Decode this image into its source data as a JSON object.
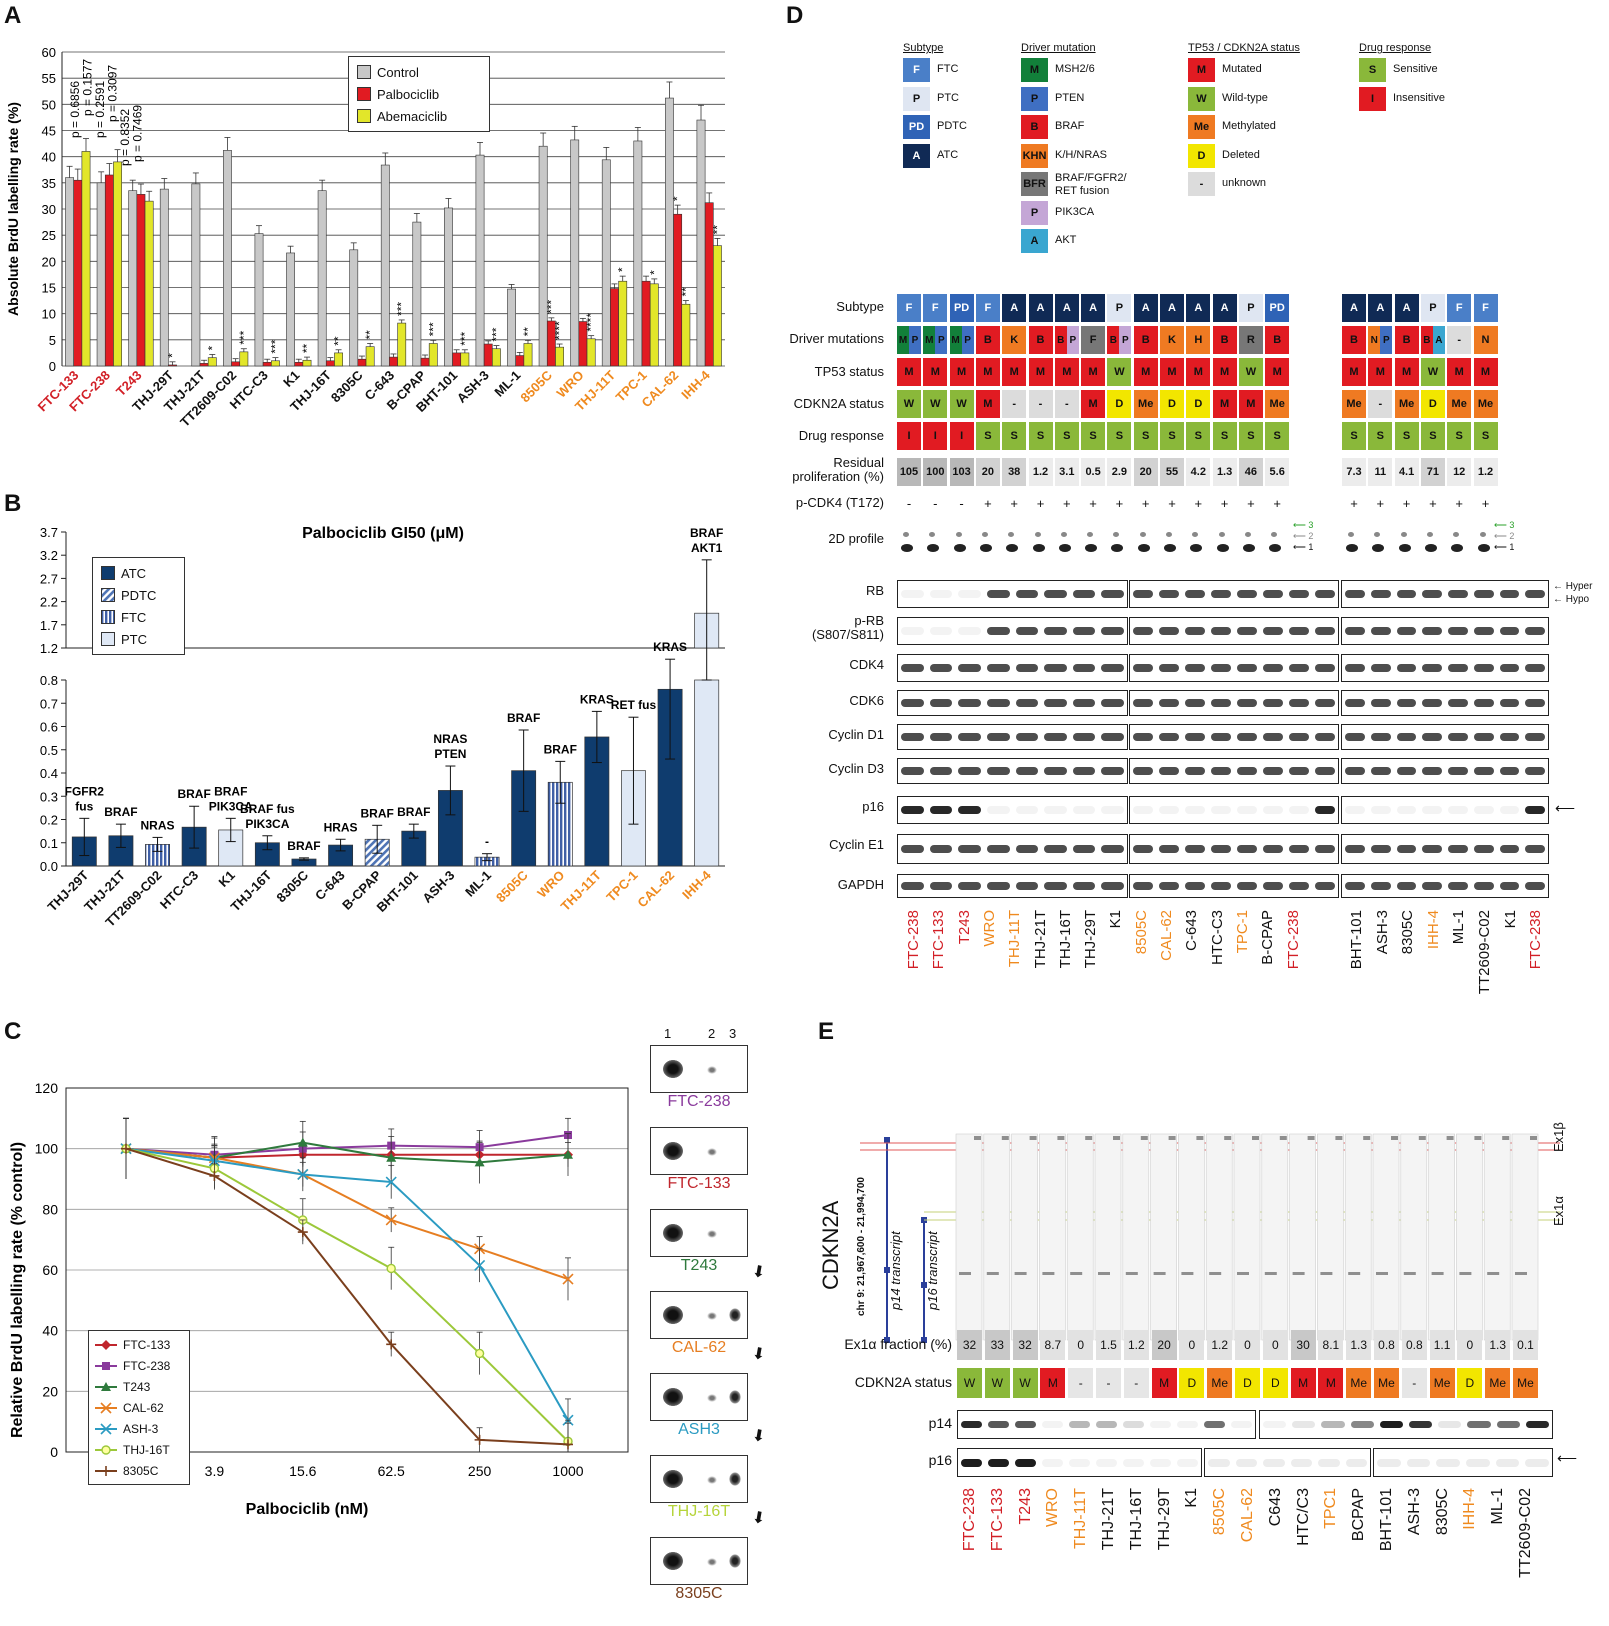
{
  "panels": {
    "a": "A",
    "b": "B",
    "c": "C",
    "d": "D",
    "e": "E"
  },
  "colors": {
    "red_label": "#d21f26",
    "orange_label": "#ef8a1f",
    "black_label": "#111111",
    "control": "#c8c8c8",
    "palbo": "#e11b22",
    "abema": "#e2e62a",
    "atc": "#0f3c6e",
    "pdtc": "#4f74b5",
    "ftc": "#4060a8",
    "ptc": "#dfe8f5"
  },
  "chart_data": [
    {
      "id": "A",
      "type": "bar",
      "ylabel": "Absolute BrdU labelling rate (%)",
      "ylim": [
        0,
        60
      ],
      "yticks": [
        0,
        5,
        10,
        15,
        20,
        25,
        30,
        35,
        40,
        45,
        50,
        55,
        60
      ],
      "categories": [
        "FTC-133",
        "FTC-238",
        "T243",
        "THJ-29T",
        "THJ-21T",
        "TT2609-C02",
        "HTC-C3",
        "K1",
        "THJ-16T",
        "8305C",
        "C-643",
        "B-CPAP",
        "BHT-101",
        "ASH-3",
        "ML-1",
        "8505C",
        "WRO",
        "THJ-11T",
        "TPC-1",
        "CAL-62",
        "IHH-4"
      ],
      "category_colors": [
        "red",
        "red",
        "red",
        "black",
        "black",
        "black",
        "black",
        "black",
        "black",
        "black",
        "black",
        "black",
        "black",
        "black",
        "black",
        "orange",
        "orange",
        "orange",
        "orange",
        "orange",
        "orange"
      ],
      "series": [
        {
          "name": "Control",
          "values": [
            36,
            35,
            33.5,
            33.8,
            34.8,
            41.2,
            25.3,
            21.6,
            33.5,
            22.2,
            38.4,
            27.5,
            30.2,
            40.3,
            14.7,
            42,
            43.2,
            39.4,
            43,
            51.2,
            47
          ]
        },
        {
          "name": "Palbociclib",
          "values": [
            35.5,
            36.5,
            32.8,
            0.2,
            0.5,
            0.8,
            0.7,
            0.7,
            1,
            1.3,
            1.7,
            1.5,
            2.5,
            4.2,
            2,
            8.6,
            8.5,
            14.8,
            16.2,
            29,
            31.2
          ]
        },
        {
          "name": "Abemaciclib",
          "values": [
            41,
            39,
            31.5,
            0,
            1.6,
            2.7,
            1,
            1.1,
            2.5,
            3.7,
            8.2,
            4.3,
            2.5,
            3.3,
            4.3,
            3.6,
            5.2,
            16.2,
            15.7,
            11.8,
            23
          ]
        }
      ],
      "pvalues": [
        "p = 0.6856",
        "p = 0.1577",
        "p = 0.2591",
        "p = 0.3097",
        "p = 0.8352",
        "p = 0.7469"
      ],
      "stars": [
        {
          "i": 3,
          "s": "Palbociclib",
          "t": "*"
        },
        {
          "i": 4,
          "s": "Abemaciclib",
          "t": "*"
        },
        {
          "i": 5,
          "s": "Abemaciclib",
          "t": "***"
        },
        {
          "i": 6,
          "s": "Abemaciclib",
          "t": "***"
        },
        {
          "i": 7,
          "s": "Abemaciclib",
          "t": "**"
        },
        {
          "i": 8,
          "s": "Abemaciclib",
          "t": "**"
        },
        {
          "i": 9,
          "s": "Abemaciclib",
          "t": "**"
        },
        {
          "i": 10,
          "s": "Abemaciclib",
          "t": "***"
        },
        {
          "i": 11,
          "s": "Abemaciclib",
          "t": "***"
        },
        {
          "i": 12,
          "s": "Abemaciclib",
          "t": "***"
        },
        {
          "i": 13,
          "s": "Abemaciclib",
          "t": "***"
        },
        {
          "i": 14,
          "s": "Abemaciclib",
          "t": "**"
        },
        {
          "i": 15,
          "s": "Palbociclib",
          "t": "***"
        },
        {
          "i": 15,
          "s": "Abemaciclib",
          "t": "****"
        },
        {
          "i": 16,
          "s": "Abemaciclib",
          "t": "****"
        },
        {
          "i": 17,
          "s": "Abemaciclib",
          "t": "*"
        },
        {
          "i": 18,
          "s": "Abemaciclib",
          "t": "*"
        },
        {
          "i": 19,
          "s": "Palbociclib",
          "t": "*"
        },
        {
          "i": 19,
          "s": "Abemaciclib",
          "t": "**"
        },
        {
          "i": 20,
          "s": "Abemaciclib",
          "t": "**"
        }
      ],
      "legend": [
        "Control",
        "Palbociclib",
        "Abemaciclib"
      ]
    },
    {
      "id": "B",
      "type": "bar",
      "title": "Palbociclib GI50 (μM)",
      "yticks_low": [
        "0.0",
        "0.1",
        "0.2",
        "0.3",
        "0.4",
        "0.5",
        "0.6",
        "0.7",
        "0.8"
      ],
      "yticks_high": [
        "1.2",
        "1.7",
        "2.2",
        "2.7",
        "3.2",
        "3.7"
      ],
      "categories": [
        "THJ-29T",
        "THJ-21T",
        "TT2609-C02",
        "HTC-C3",
        "K1",
        "THJ-16T",
        "8305C",
        "C-643",
        "B-CPAP",
        "BHT-101",
        "ASH-3",
        "ML-1",
        "8505C",
        "WRO",
        "THJ-11T",
        "TPC-1",
        "CAL-62",
        "IHH-4"
      ],
      "category_colors": [
        "black",
        "black",
        "black",
        "black",
        "black",
        "black",
        "black",
        "black",
        "black",
        "black",
        "black",
        "black",
        "orange",
        "orange",
        "orange",
        "orange",
        "orange",
        "orange"
      ],
      "subtype": [
        "ATC",
        "ATC",
        "FTC",
        "ATC",
        "PTC",
        "ATC",
        "ATC",
        "ATC",
        "PDTC",
        "ATC",
        "ATC",
        "FTC",
        "ATC",
        "FTC",
        "ATC",
        "PTC",
        "ATC",
        "PTC"
      ],
      "values": [
        0.125,
        0.13,
        0.093,
        0.167,
        0.155,
        0.1,
        0.03,
        0.09,
        0.115,
        0.15,
        0.325,
        0.038,
        0.41,
        0.36,
        0.555,
        0.41,
        0.76,
        1.95
      ],
      "errors": [
        0.08,
        0.05,
        0.03,
        0.09,
        0.05,
        0.03,
        0.005,
        0.025,
        0.06,
        0.03,
        0.105,
        0.015,
        0.175,
        0.09,
        0.11,
        0.23,
        0.3,
        1.15
      ],
      "annotations": [
        "FGFR2\nfus",
        "BRAF",
        "NRAS",
        "BRAF",
        "BRAF\nPIK3CA",
        "BRAF fus\nPIK3CA",
        "BRAF",
        "HRAS",
        "BRAF",
        "BRAF",
        "NRAS\nPTEN",
        "-",
        "BRAF",
        "BRAF",
        "KRAS",
        "RET fus",
        "KRAS",
        "BRAF\nAKT1"
      ],
      "legend": [
        "ATC",
        "PDTC",
        "FTC",
        "PTC"
      ]
    },
    {
      "id": "C",
      "type": "line",
      "xlabel": "Palbociclib (nM)",
      "ylabel": "Relative BrdU labelling rate (% control)",
      "x": [
        "0",
        "3.9",
        "15.6",
        "62.5",
        "250",
        "1000"
      ],
      "ylim": [
        0,
        120
      ],
      "yticks": [
        "0",
        "20",
        "40",
        "60",
        "80",
        "100",
        "120"
      ],
      "series": [
        {
          "name": "FTC-133",
          "color": "#c0262d",
          "marker": "diamond",
          "values": [
            100,
            97,
            98,
            98,
            98,
            98
          ]
        },
        {
          "name": "FTC-238",
          "color": "#8a3a9c",
          "marker": "square",
          "values": [
            100,
            98,
            100,
            101,
            100.5,
            104.5
          ]
        },
        {
          "name": "T243",
          "color": "#2f7a3d",
          "marker": "triangle",
          "values": [
            100,
            97,
            102,
            97,
            95.5,
            98
          ]
        },
        {
          "name": "CAL-62",
          "color": "#e67e22",
          "marker": "x",
          "values": [
            100,
            97,
            91.5,
            76.5,
            67,
            57
          ]
        },
        {
          "name": "ASH-3",
          "color": "#2b9bc2",
          "marker": "x",
          "values": [
            100,
            96,
            91.5,
            89,
            61.5,
            10.5
          ]
        },
        {
          "name": "THJ-16T",
          "color": "#9cc83a",
          "marker": "circle",
          "values": [
            100,
            93.5,
            76.5,
            60.5,
            32.5,
            3.5
          ]
        },
        {
          "name": "8305C",
          "color": "#7a3f1d",
          "marker": "plus",
          "values": [
            100,
            91,
            72.5,
            35.5,
            4,
            2.5
          ]
        }
      ]
    }
  ],
  "c_blots": {
    "lanes": [
      "1",
      "2",
      "3"
    ],
    "labels": [
      "FTC-238",
      "FTC-133",
      "T243",
      "CAL-62",
      "ASH3",
      "THJ-16T",
      "8305C"
    ],
    "label_colors": [
      "#8a3a9c",
      "#c0262d",
      "#2f7a3d",
      "#e67e22",
      "#2b9bc2",
      "#b6d43a",
      "#7a3f1d"
    ]
  },
  "d": {
    "legend": {
      "subtype": {
        "title": "Subtype",
        "items": [
          [
            "F",
            "FTC"
          ],
          [
            "P",
            "PTC"
          ],
          [
            "PD",
            "PDTC"
          ],
          [
            "A",
            "ATC"
          ]
        ]
      },
      "driver": {
        "title": "Driver mutation",
        "items": [
          [
            "M",
            "MSH2/6"
          ],
          [
            "P",
            "PTEN"
          ],
          [
            "B",
            "BRAF"
          ],
          [
            "KHN",
            "K/H/NRAS"
          ],
          [
            "BFR",
            "BRAF/FGFR2/\nRET fusion"
          ],
          [
            "P",
            "PIK3CA"
          ],
          [
            "A",
            "AKT"
          ]
        ]
      },
      "tp53": {
        "title": "TP53 / CDKN2A status",
        "items": [
          [
            "M",
            "Mutated"
          ],
          [
            "W",
            "Wild-type"
          ],
          [
            "Me",
            "Methylated"
          ],
          [
            "D",
            "Deleted"
          ],
          [
            "-",
            "unknown"
          ]
        ]
      },
      "drug": {
        "title": "Drug response",
        "items": [
          [
            "S",
            "Sensitive"
          ],
          [
            "I",
            "Insensitive"
          ]
        ]
      }
    },
    "row_labels": [
      "Subtype",
      "Driver mutations",
      "TP53 status",
      "CDKN2A status",
      "Drug response",
      "Residual\nproliferation (%)",
      "p-CDK4 (T172)",
      "2D profile"
    ],
    "lines_g1": [
      "FTC-238",
      "FTC-133",
      "T243",
      "WRO",
      "THJ-11T",
      "THJ-21T",
      "THJ-16T",
      "THJ-29T",
      "K1",
      "8505C",
      "CAL-62",
      "C-643",
      "HTC-C3",
      "TPC-1",
      "B-CPAP",
      "FTC-238"
    ],
    "lines_g1_colors": [
      "red",
      "red",
      "red",
      "orange",
      "orange",
      "black",
      "black",
      "black",
      "black",
      "orange",
      "orange",
      "black",
      "black",
      "orange",
      "black",
      "red"
    ],
    "lines_g2": [
      "BHT-101",
      "ASH-3",
      "8305C",
      "IHH-4",
      "ML-1",
      "TT2609-C02",
      "K1",
      "FTC-238"
    ],
    "lines_g2_colors": [
      "black",
      "black",
      "black",
      "orange",
      "black",
      "black",
      "black",
      "red"
    ],
    "subtype_g1": [
      "F",
      "F",
      "PD",
      "F",
      "A",
      "A",
      "A",
      "A",
      "P",
      "A",
      "A",
      "A",
      "A",
      "P",
      "PD"
    ],
    "subtype_g2": [
      "A",
      "A",
      "A",
      "P",
      "F",
      "F"
    ],
    "driver_g1": [
      "MP",
      "MP",
      "MP",
      "B",
      "K",
      "B",
      "BP",
      "F",
      "BP",
      "B",
      "K",
      "H",
      "B",
      "R",
      "B"
    ],
    "driver_g2": [
      "B",
      "NP",
      "B",
      "BA",
      "-",
      "N"
    ],
    "tp53_g1": [
      "M",
      "M",
      "M",
      "M",
      "M",
      "M",
      "M",
      "M",
      "W",
      "M",
      "M",
      "M",
      "M",
      "W",
      "M"
    ],
    "tp53_g2": [
      "M",
      "M",
      "M",
      "W",
      "M",
      "M"
    ],
    "cdkn2a_g1": [
      "W",
      "W",
      "W",
      "M",
      "-",
      "-",
      "-",
      "M",
      "D",
      "Me",
      "D",
      "D",
      "M",
      "M",
      "Me"
    ],
    "cdkn2a_g2": [
      "Me",
      "-",
      "Me",
      "D",
      "Me",
      "Me"
    ],
    "drug_g1": [
      "I",
      "I",
      "I",
      "S",
      "S",
      "S",
      "S",
      "S",
      "S",
      "S",
      "S",
      "S",
      "S",
      "S",
      "S"
    ],
    "drug_g2": [
      "S",
      "S",
      "S",
      "S",
      "S",
      "S"
    ],
    "resid_g1": [
      "105",
      "100",
      "103",
      "20",
      "38",
      "1.2",
      "3.1",
      "0.5",
      "2.9",
      "20",
      "55",
      "4.2",
      "1.3",
      "46",
      "5.6"
    ],
    "resid_g2": [
      "7.3",
      "11",
      "4.1",
      "71",
      "12",
      "1.2"
    ],
    "pcdk4_g1": [
      "-",
      "-",
      "-",
      "+",
      "+",
      "+",
      "+",
      "+",
      "+",
      "+",
      "+",
      "+",
      "+",
      "+",
      "+"
    ],
    "pcdk4_g2": [
      "+",
      "+",
      "+",
      "+",
      "+",
      "+"
    ],
    "profile_marks": [
      "3",
      "2",
      "1"
    ],
    "blot_rows": [
      "RB",
      "p-RB\n(S807/S811)",
      "CDK4",
      "CDK6",
      "Cyclin D1",
      "Cyclin D3",
      "p16",
      "Cyclin E1",
      "GAPDH"
    ],
    "rb_marks": [
      "Hyper",
      "Hypo"
    ]
  },
  "e": {
    "gene": "CDKN2A",
    "coords": "chr 9: 21,967,600 - 21,994,700",
    "transcripts": [
      "p14 transcript",
      "p16 transcript"
    ],
    "exons": [
      "Ex1β",
      "Ex1α"
    ],
    "row_labels": [
      "Ex1α fraction (%)",
      "CDKN2A status",
      "p14",
      "p16"
    ],
    "fraction": [
      "32",
      "33",
      "32",
      "8.7",
      "0",
      "1.5",
      "1.2",
      "20",
      "0",
      "1.2",
      "0",
      "0",
      "30",
      "8.1",
      "1.3",
      "0.8",
      "0.8",
      "1.1",
      "0",
      "1.3",
      "0.1"
    ],
    "status": [
      "W",
      "W",
      "W",
      "M",
      "-",
      "-",
      "-",
      "M",
      "D",
      "Me",
      "D",
      "D",
      "M",
      "M",
      "Me",
      "Me",
      "-",
      "Me",
      "D",
      "Me",
      "Me"
    ],
    "lines": [
      "FTC-238",
      "FTC-133",
      "T243",
      "WRO",
      "THJ-11T",
      "THJ-21T",
      "THJ-16T",
      "THJ-29T",
      "K1",
      "8505C",
      "CAL-62",
      "C643",
      "HTC/C3",
      "TPC1",
      "BCPAP",
      "BHT-101",
      "ASH-3",
      "8305C",
      "IHH-4",
      "ML-1",
      "TT2609-C02"
    ],
    "line_colors": [
      "red",
      "red",
      "red",
      "orange",
      "orange",
      "black",
      "black",
      "black",
      "black",
      "orange",
      "orange",
      "black",
      "black",
      "orange",
      "black",
      "black",
      "black",
      "black",
      "orange",
      "black",
      "black"
    ]
  }
}
